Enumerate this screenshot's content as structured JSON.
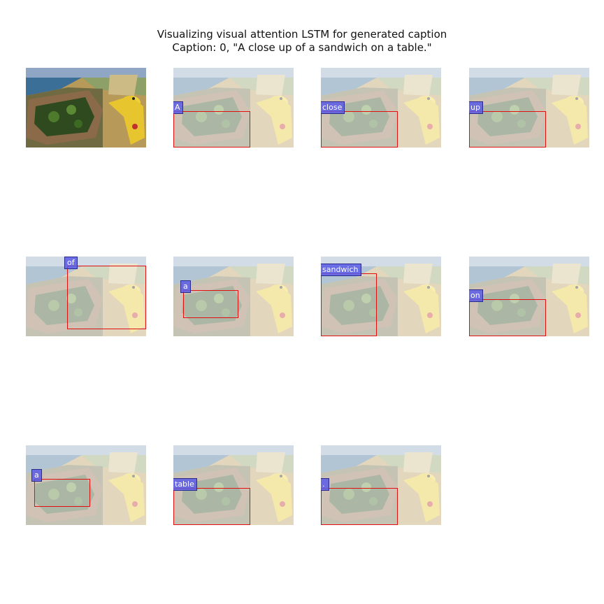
{
  "figure": {
    "title_line1": "Visualizing visual attention LSTM for generated caption",
    "title_line2": "Caption: 0, \"A close up of a sandwich on a table.\""
  },
  "panels": [
    {
      "word": ""
    },
    {
      "word": "A"
    },
    {
      "word": "close"
    },
    {
      "word": "up"
    },
    {
      "word": "of"
    },
    {
      "word": "a"
    },
    {
      "word": "sandwich"
    },
    {
      "word": "on"
    },
    {
      "word": "a"
    },
    {
      "word": "table"
    },
    {
      "word": "."
    }
  ],
  "colors": {
    "box_border": "#e01010",
    "word_bg": "#5a5ae6"
  }
}
